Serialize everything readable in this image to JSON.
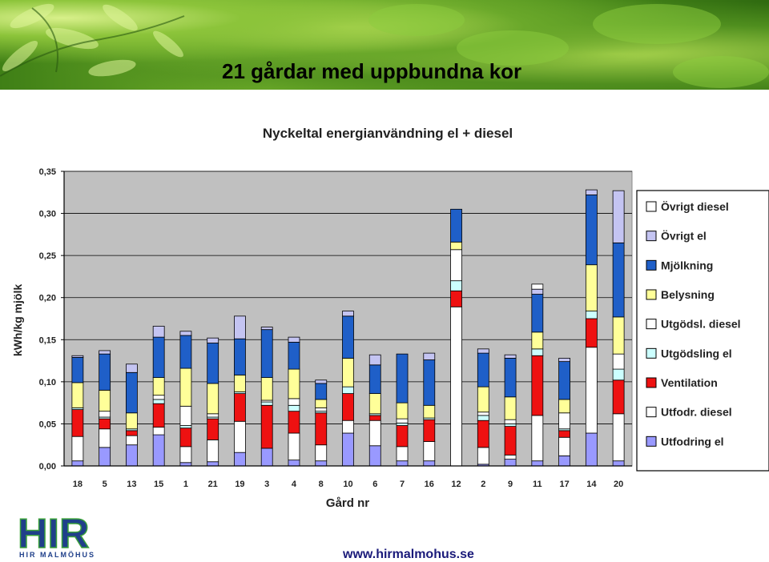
{
  "slide": {
    "title": "21 gårdar med uppbundna kor",
    "url": "www.hirmalmohus.se",
    "logo_text": "HIR",
    "logo_subtitle": "HIR MALMÖHUS"
  },
  "colors": {
    "Övrigt diesel": "#ffffff",
    "Övrigt el": "#c4c4f2",
    "Mjölkning": "#1f5fc8",
    "Belysning": "#ffff99",
    "Utgödsl. diesel": "#ffffff",
    "Utgödsling el": "#ccffff",
    "Ventilation": "#ee1111",
    "Utfodr. diesel": "#ffffff",
    "Utfodring el": "#9999ff"
  },
  "chart_data": {
    "type": "bar",
    "stacked": true,
    "title": "Nyckeltal energianvändning el + diesel",
    "xlabel": "Gård nr",
    "ylabel": "kWh/kg mjölk",
    "ylim": [
      0,
      0.35
    ],
    "yticks": [
      "0,00",
      "0,05",
      "0,10",
      "0,15",
      "0,20",
      "0,25",
      "0,30",
      "0,35"
    ],
    "grid": true,
    "legend_position": "right",
    "categories": [
      "18",
      "5",
      "13",
      "15",
      "1",
      "21",
      "19",
      "3",
      "4",
      "8",
      "10",
      "6",
      "7",
      "16",
      "12",
      "2",
      "9",
      "11",
      "17",
      "14",
      "20"
    ],
    "series": [
      {
        "name": "Utfodring el",
        "values": [
          0.006,
          0.022,
          0.025,
          0.037,
          0.004,
          0.005,
          0.016,
          0.021,
          0.007,
          0.006,
          0.039,
          0.024,
          0.006,
          0.006,
          0.0,
          0.002,
          0.008,
          0.006,
          0.012,
          0.039,
          0.006
        ]
      },
      {
        "name": "Utfodr. diesel",
        "values": [
          0.029,
          0.022,
          0.011,
          0.009,
          0.019,
          0.026,
          0.037,
          0.0,
          0.032,
          0.019,
          0.015,
          0.03,
          0.017,
          0.023,
          0.189,
          0.02,
          0.005,
          0.054,
          0.022,
          0.102,
          0.056
        ]
      },
      {
        "name": "Ventilation",
        "values": [
          0.032,
          0.012,
          0.006,
          0.028,
          0.022,
          0.025,
          0.033,
          0.051,
          0.026,
          0.038,
          0.032,
          0.006,
          0.025,
          0.026,
          0.019,
          0.032,
          0.034,
          0.071,
          0.008,
          0.034,
          0.04
        ]
      },
      {
        "name": "Utgödsling el",
        "values": [
          0.002,
          0.002,
          0.002,
          0.005,
          0.003,
          0.002,
          0.002,
          0.004,
          0.007,
          0.002,
          0.008,
          0.002,
          0.003,
          0.002,
          0.012,
          0.006,
          0.003,
          0.008,
          0.002,
          0.009,
          0.013
        ]
      },
      {
        "name": "Utgödsl. diesel",
        "values": [
          0.0,
          0.007,
          0.0,
          0.005,
          0.023,
          0.004,
          0.0,
          0.002,
          0.008,
          0.004,
          0.0,
          0.0,
          0.005,
          0.0,
          0.037,
          0.004,
          0.005,
          0.0,
          0.019,
          0.0,
          0.018
        ]
      },
      {
        "name": "Belysning",
        "values": [
          0.03,
          0.025,
          0.019,
          0.021,
          0.045,
          0.036,
          0.02,
          0.027,
          0.035,
          0.01,
          0.034,
          0.024,
          0.019,
          0.015,
          0.009,
          0.03,
          0.027,
          0.02,
          0.016,
          0.055,
          0.044
        ]
      },
      {
        "name": "Mjölkning",
        "values": [
          0.03,
          0.043,
          0.048,
          0.048,
          0.039,
          0.048,
          0.043,
          0.057,
          0.032,
          0.019,
          0.05,
          0.034,
          0.058,
          0.054,
          0.039,
          0.04,
          0.046,
          0.045,
          0.045,
          0.083,
          0.088
        ]
      },
      {
        "name": "Övrigt el",
        "values": [
          0.002,
          0.004,
          0.01,
          0.013,
          0.005,
          0.006,
          0.027,
          0.003,
          0.006,
          0.004,
          0.006,
          0.012,
          0.0,
          0.008,
          0.0,
          0.005,
          0.004,
          0.006,
          0.004,
          0.006,
          0.062
        ]
      },
      {
        "name": "Övrigt diesel",
        "values": [
          0.0,
          0.0,
          0.0,
          0.0,
          0.0,
          0.0,
          0.0,
          0.0,
          0.0,
          0.0,
          0.0,
          0.0,
          0.0,
          0.0,
          0.0,
          0.0,
          0.0,
          0.006,
          0.0,
          0.0,
          0.0
        ]
      }
    ]
  }
}
